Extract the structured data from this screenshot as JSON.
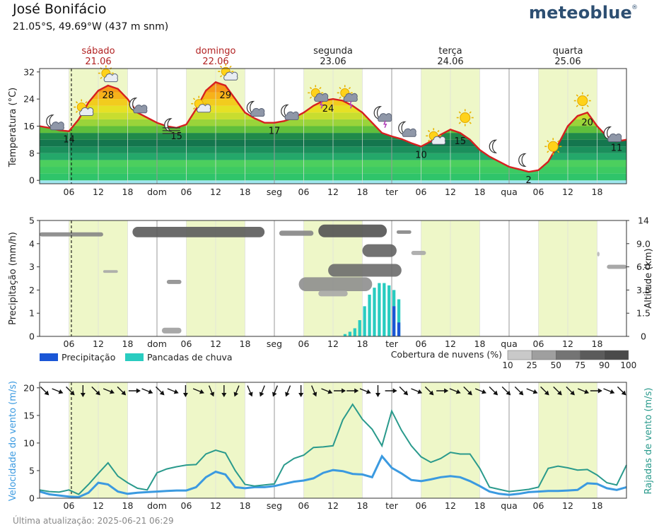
{
  "header": {
    "location": "José Bonifácio",
    "coordinates": "21.05°S, 49.69°W (437 m snm)",
    "brand": "meteoblue",
    "brand_mark": "®"
  },
  "footer": {
    "updated": "Última atualização: 2025-06-21 06:29"
  },
  "colors": {
    "day_band": "#eef7c8",
    "temp_line": "#d62020",
    "precip": "#1a56d6",
    "showers": "#29ccc0",
    "wind_speed": "#3b9ae0",
    "wind_gusts": "#2a9a8c",
    "day_label": "#b22222",
    "frame": "#333333"
  },
  "days": [
    {
      "name": "sábado",
      "date": "21.06",
      "current": true
    },
    {
      "name": "domingo",
      "date": "22.06",
      "current": true
    },
    {
      "name": "segunda",
      "date": "23.06",
      "current": false
    },
    {
      "name": "terça",
      "date": "24.06",
      "current": false
    },
    {
      "name": "quarta",
      "date": "25.06",
      "current": false
    }
  ],
  "time_axis": {
    "labels": [
      "06",
      "12",
      "18",
      "dom",
      "06",
      "12",
      "18",
      "seg",
      "06",
      "12",
      "18",
      "ter",
      "06",
      "12",
      "18",
      "qua",
      "06",
      "12",
      "18"
    ],
    "hours": [
      6,
      12,
      18,
      24,
      30,
      36,
      42,
      48,
      54,
      60,
      66,
      72,
      78,
      84,
      90,
      96,
      102,
      108,
      114
    ],
    "start_hour": 0,
    "end_hour": 120,
    "now_hour": 6.5
  },
  "chart_data": [
    {
      "type": "line",
      "name": "temperature",
      "ylabel": "Temperatura (°C)",
      "ylim": [
        -1,
        33
      ],
      "yticks": [
        0,
        8,
        16,
        24,
        32
      ],
      "x": [
        0,
        2,
        4,
        6,
        8,
        10,
        12,
        14,
        16,
        18,
        20,
        22,
        24,
        26,
        28,
        30,
        32,
        34,
        36,
        38,
        40,
        42,
        44,
        46,
        48,
        50,
        52,
        54,
        56,
        58,
        60,
        62,
        64,
        66,
        68,
        70,
        72,
        74,
        76,
        78,
        80,
        82,
        84,
        86,
        88,
        90,
        92,
        94,
        96,
        98,
        100,
        102,
        104,
        106,
        108,
        110,
        112,
        114,
        116,
        118,
        120
      ],
      "values": [
        16,
        15.5,
        14.8,
        14.5,
        18,
        23,
        26.5,
        28,
        27,
        24,
        20,
        18.5,
        17,
        16,
        15.5,
        16.5,
        21,
        26.5,
        29,
        28,
        24,
        20,
        18.3,
        17,
        17,
        17.5,
        18.5,
        20,
        22,
        23.5,
        24,
        23.5,
        22,
        20,
        17,
        14,
        13,
        12.2,
        11,
        10,
        11.5,
        13.5,
        15,
        14,
        12,
        9,
        7,
        5.5,
        4,
        3.3,
        2.5,
        3,
        5.5,
        10.5,
        16,
        19,
        20,
        16,
        13,
        11.5,
        12
      ],
      "point_labels": [
        {
          "x": 6,
          "value": "14"
        },
        {
          "x": 14,
          "value": "28"
        },
        {
          "x": 28,
          "value": "15"
        },
        {
          "x": 38,
          "value": "29"
        },
        {
          "x": 48,
          "value": "17"
        },
        {
          "x": 59,
          "value": "24"
        },
        {
          "x": 78,
          "value": "10"
        },
        {
          "x": 86,
          "value": "15"
        },
        {
          "x": 100,
          "value": "2"
        },
        {
          "x": 112,
          "value": "20"
        },
        {
          "x": 120,
          "value": "11"
        }
      ],
      "weather_icons": [
        {
          "x": 3,
          "t": 17,
          "icon": "moon-cloud-icon"
        },
        {
          "x": 9,
          "t": 21,
          "icon": "sun-cloud-icon"
        },
        {
          "x": 14,
          "t": 31,
          "icon": "sun-cloud-icon"
        },
        {
          "x": 20,
          "t": 22,
          "icon": "moon-cloud-icon"
        },
        {
          "x": 27,
          "t": 15.5,
          "icon": "moon-fog-icon"
        },
        {
          "x": 33,
          "t": 22,
          "icon": "sun-cloud-icon"
        },
        {
          "x": 38.5,
          "t": 31.5,
          "icon": "sun-cloud-icon"
        },
        {
          "x": 44,
          "t": 21,
          "icon": "moon-cloud-icon"
        },
        {
          "x": 51,
          "t": 20,
          "icon": "moon-cloud-icon"
        },
        {
          "x": 57,
          "t": 25,
          "icon": "sun-storm-icon"
        },
        {
          "x": 63,
          "t": 25,
          "icon": "sun-storm-icon"
        },
        {
          "x": 70,
          "t": 19.5,
          "icon": "moon-storm-icon"
        },
        {
          "x": 75,
          "t": 15,
          "icon": "moon-cloud-icon"
        },
        {
          "x": 81,
          "t": 12.5,
          "icon": "sun-cloud-icon"
        },
        {
          "x": 87,
          "t": 18.5,
          "icon": "sun-icon"
        },
        {
          "x": 93,
          "t": 10,
          "icon": "moon-icon"
        },
        {
          "x": 99,
          "t": 6,
          "icon": "moon-icon"
        },
        {
          "x": 105,
          "t": 10,
          "icon": "sun-icon"
        },
        {
          "x": 111,
          "t": 23.5,
          "icon": "sun-icon"
        },
        {
          "x": 117,
          "t": 13.5,
          "icon": "moon-cloud-icon"
        }
      ]
    },
    {
      "type": "bar",
      "name": "precipitation",
      "ylabel": "Precipitação (mm/h)",
      "y2label": "Altitude (km)",
      "ylim": [
        0,
        5
      ],
      "yticks": [
        0,
        1,
        2,
        3,
        4,
        5
      ],
      "y2ticks": [
        "0",
        "1.5",
        "3.5",
        "6.0",
        "9.0",
        "14"
      ],
      "showers": {
        "x": [
          62,
          63,
          64,
          65,
          66,
          67,
          68,
          69,
          70,
          71,
          72,
          73
        ],
        "values": [
          0.1,
          0.2,
          0.35,
          0.7,
          1.3,
          1.8,
          2.1,
          2.3,
          2.3,
          2.2,
          2.0,
          1.6
        ]
      },
      "precipitation": {
        "x": [
          68,
          69,
          70,
          71,
          72,
          73
        ],
        "values": [
          0.0,
          0.0,
          0.0,
          0.0,
          1.3,
          0.6
        ]
      },
      "clouds": [
        {
          "x0": 0,
          "x1": 13,
          "y": 4.4,
          "h": 0.18,
          "level": 60
        },
        {
          "x0": 19,
          "x1": 46,
          "y": 4.5,
          "h": 0.45,
          "level": 85
        },
        {
          "x0": 49,
          "x1": 56,
          "y": 4.45,
          "h": 0.22,
          "level": 60
        },
        {
          "x0": 57,
          "x1": 71,
          "y": 4.55,
          "h": 0.55,
          "level": 90
        },
        {
          "x0": 73,
          "x1": 76,
          "y": 4.5,
          "h": 0.15,
          "level": 60
        },
        {
          "x0": 66,
          "x1": 73,
          "y": 3.7,
          "h": 0.55,
          "level": 80
        },
        {
          "x0": 59,
          "x1": 74,
          "y": 2.85,
          "h": 0.55,
          "level": 75
        },
        {
          "x0": 53,
          "x1": 68,
          "y": 2.25,
          "h": 0.6,
          "level": 55
        },
        {
          "x0": 57,
          "x1": 63,
          "y": 1.85,
          "h": 0.25,
          "level": 40
        },
        {
          "x0": 76,
          "x1": 79,
          "y": 3.6,
          "h": 0.18,
          "level": 40
        },
        {
          "x0": 13,
          "x1": 16,
          "y": 2.8,
          "h": 0.12,
          "level": 40
        },
        {
          "x0": 26,
          "x1": 29,
          "y": 2.35,
          "h": 0.18,
          "level": 55
        },
        {
          "x0": 25,
          "x1": 29,
          "y": 0.25,
          "h": 0.25,
          "level": 45
        },
        {
          "x0": 116,
          "x1": 120,
          "y": 3.0,
          "h": 0.18,
          "level": 45
        },
        {
          "x0": 114,
          "x1": 114.5,
          "y": 3.55,
          "h": 0.2,
          "level": 30
        }
      ],
      "legend": {
        "precip": "Precipitação",
        "showers": "Pancadas de chuva"
      },
      "cloud_legend": {
        "title": "Cobertura de nuvens (%)",
        "levels": [
          "10",
          "25",
          "50",
          "75",
          "90",
          "100"
        ]
      }
    },
    {
      "type": "line",
      "name": "wind",
      "ylabel": "Velocidade do vento (m/s)",
      "y2label": "Rajadas de vento (m/s)",
      "ylim": [
        0,
        21
      ],
      "yticks": [
        0,
        5,
        10,
        15,
        20
      ],
      "x": [
        0,
        2,
        4,
        6,
        8,
        10,
        12,
        14,
        16,
        18,
        20,
        22,
        24,
        26,
        28,
        30,
        32,
        34,
        36,
        38,
        40,
        42,
        44,
        46,
        48,
        50,
        52,
        54,
        56,
        58,
        60,
        62,
        64,
        66,
        68,
        70,
        72,
        74,
        76,
        78,
        80,
        82,
        84,
        86,
        88,
        90,
        92,
        94,
        96,
        98,
        100,
        102,
        104,
        106,
        108,
        110,
        112,
        114,
        116,
        118,
        120
      ],
      "series": [
        {
          "name": "speed",
          "values": [
            1.2,
            0.7,
            0.5,
            0.3,
            0.2,
            1.0,
            2.8,
            2.5,
            1.2,
            0.8,
            1.0,
            1.1,
            1.2,
            1.3,
            1.4,
            1.4,
            2.0,
            3.8,
            4.8,
            4.3,
            2.0,
            1.8,
            2.0,
            2.0,
            2.2,
            2.6,
            3.0,
            3.2,
            3.6,
            4.6,
            5.1,
            4.9,
            4.4,
            4.3,
            3.8,
            7.6,
            5.5,
            4.5,
            3.3,
            3.1,
            3.4,
            3.8,
            4.0,
            3.8,
            3.1,
            2.2,
            1.2,
            0.8,
            0.6,
            0.8,
            1.1,
            1.2,
            1.3,
            1.3,
            1.4,
            1.5,
            2.7,
            2.6,
            1.8,
            1.5,
            2.0
          ]
        },
        {
          "name": "gusts",
          "values": [
            1.5,
            1.2,
            1.1,
            1.5,
            0.7,
            2.5,
            4.5,
            6.4,
            4.0,
            2.8,
            1.8,
            1.5,
            4.6,
            5.3,
            5.7,
            6.0,
            6.1,
            8.0,
            8.7,
            8.2,
            5.0,
            2.5,
            2.2,
            2.4,
            2.6,
            6.0,
            7.2,
            7.8,
            9.2,
            9.3,
            9.5,
            14.2,
            17.0,
            14.3,
            12.5,
            9.5,
            15.8,
            12.3,
            9.5,
            7.5,
            6.5,
            7.2,
            8.3,
            8.0,
            8.0,
            5.4,
            2.0,
            1.6,
            1.2,
            1.4,
            1.6,
            2.0,
            5.4,
            5.8,
            5.5,
            5.1,
            5.2,
            4.2,
            2.8,
            2.4,
            6.0
          ]
        }
      ],
      "directions_deg": [
        315,
        292,
        315,
        0,
        315,
        292,
        315,
        270,
        292,
        315,
        292,
        0,
        292,
        337,
        0,
        22,
        337,
        22,
        22,
        22,
        0,
        337,
        292,
        270,
        270,
        292,
        0,
        270,
        315,
        292,
        315,
        270,
        292,
        315,
        292,
        315,
        315,
        315,
        292,
        315,
        315,
        315,
        292,
        270,
        292,
        315
      ]
    }
  ]
}
